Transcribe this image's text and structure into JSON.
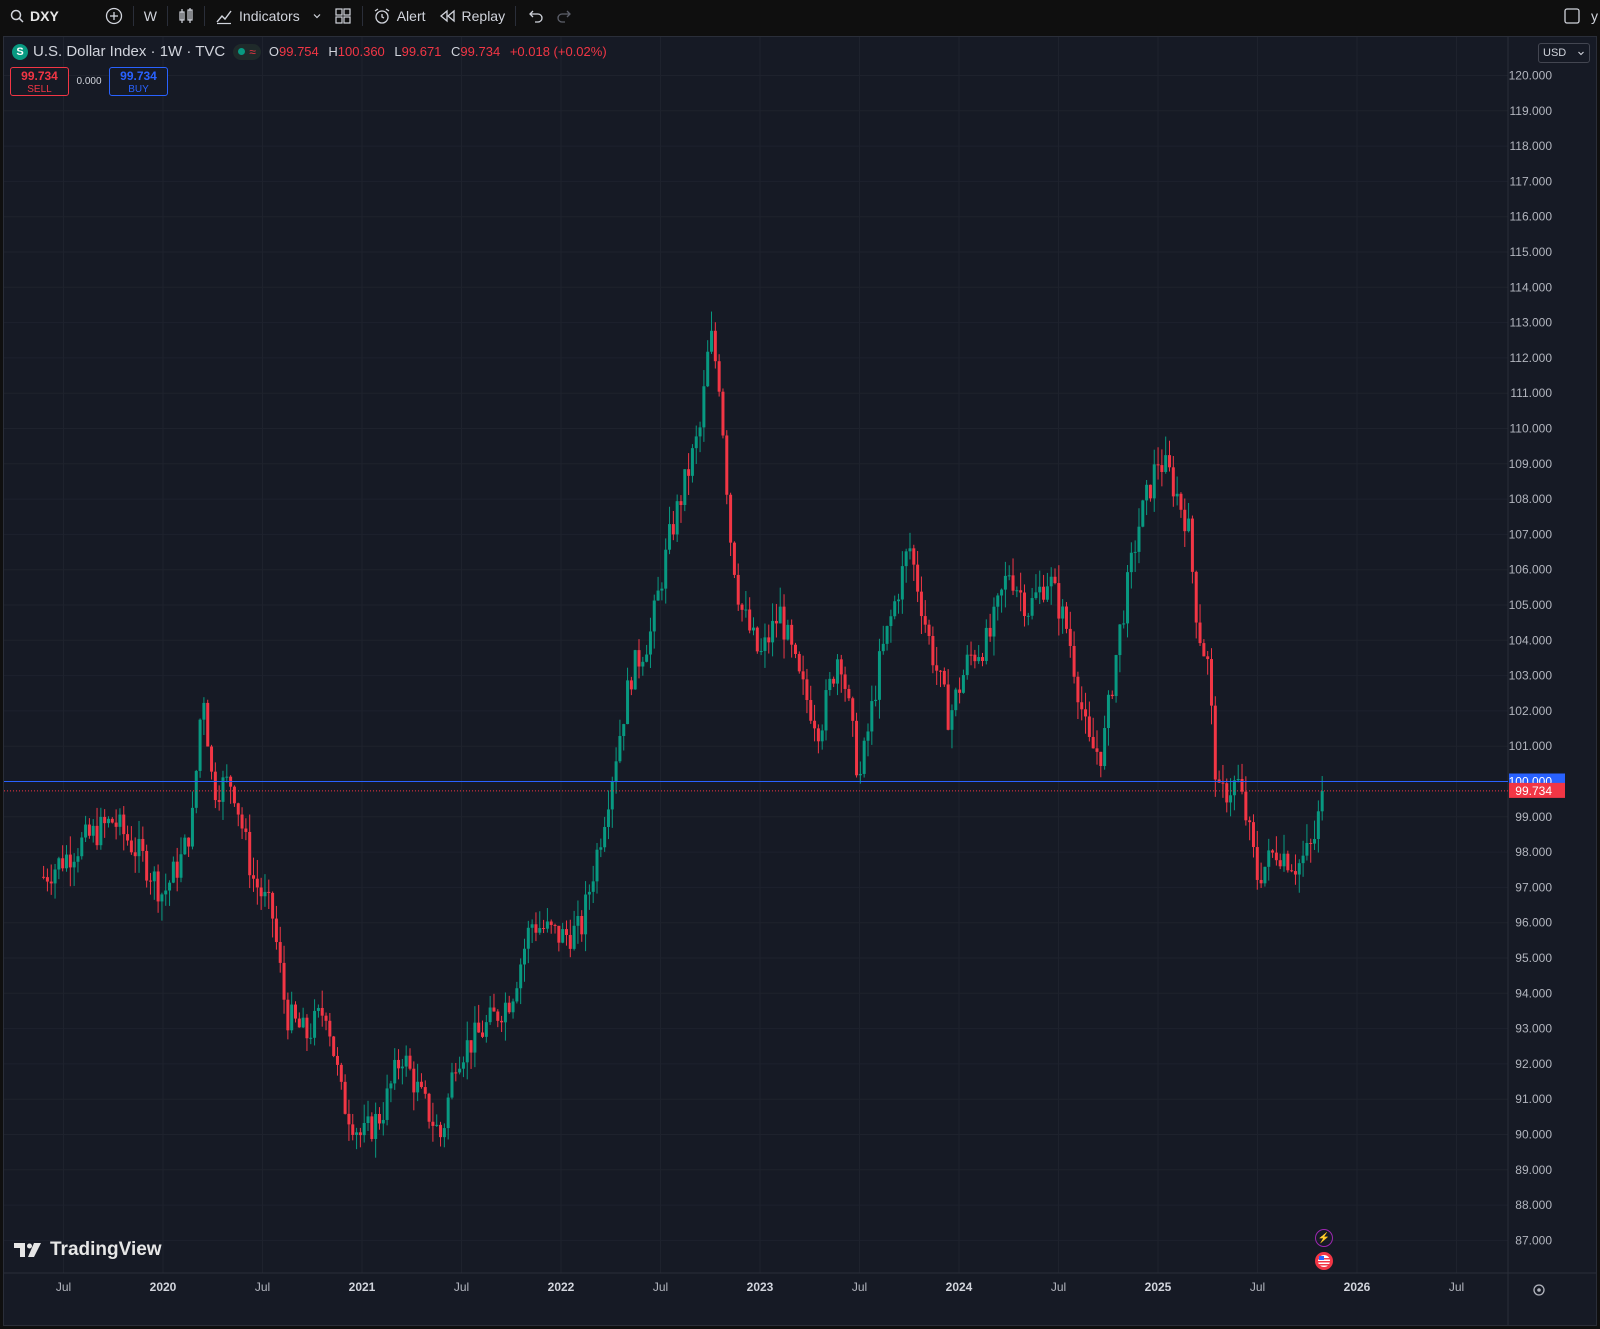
{
  "toolbar": {
    "symbol": "DXY",
    "interval": "W",
    "indicators_label": "Indicators",
    "alert_label": "Alert",
    "replay_label": "Replay",
    "right_text": "y"
  },
  "legend": {
    "title": "U.S. Dollar Index · 1W · TVC",
    "symbol_badge": "S",
    "open_key": "O",
    "open": "99.754",
    "high_key": "H",
    "high": "100.360",
    "low_key": "L",
    "low": "99.671",
    "close_key": "C",
    "close": "99.734",
    "change": "+0.018 (+0.02%)",
    "live_wave": "≈"
  },
  "trade": {
    "sell_price": "99.734",
    "sell_label": "SELL",
    "spread": "0.000",
    "buy_price": "99.734",
    "buy_label": "BUY"
  },
  "currency": {
    "label": "USD"
  },
  "brand": {
    "name": "TradingView"
  },
  "colors": {
    "up": "#089981",
    "down": "#f23645",
    "blue_line": "#2962ff",
    "background": "#161a25",
    "grid": "#1e222d",
    "text": "#d1d4dc"
  },
  "chart_data": {
    "type": "candlestick",
    "title": "U.S. Dollar Index · 1W · TVC",
    "interval": "1W",
    "ylim": [
      86.5,
      121
    ],
    "y_ticks": [
      "120.000",
      "119.000",
      "118.000",
      "117.000",
      "116.000",
      "115.000",
      "114.000",
      "113.000",
      "112.000",
      "111.000",
      "110.000",
      "109.000",
      "108.000",
      "107.000",
      "106.000",
      "105.000",
      "104.000",
      "103.000",
      "102.000",
      "101.000",
      "100.000",
      "99.000",
      "98.000",
      "97.000",
      "96.000",
      "95.000",
      "94.000",
      "93.000",
      "92.000",
      "91.000",
      "90.000",
      "89.000",
      "88.000",
      "87.000"
    ],
    "x_ticks": [
      "Jul",
      "2020",
      "Jul",
      "2021",
      "Jul",
      "2022",
      "Jul",
      "2023",
      "Jul",
      "2024",
      "Jul",
      "2025",
      "Jul",
      "2026",
      "Jul"
    ],
    "bold_x_ticks": [
      "2020",
      "2021",
      "2022",
      "2023",
      "2024",
      "2025",
      "2026"
    ],
    "price_path": [
      [
        2019.4,
        97.3
      ],
      [
        2019.5,
        97.8
      ],
      [
        2019.6,
        98.3
      ],
      [
        2019.75,
        98.9
      ],
      [
        2019.9,
        97.8
      ],
      [
        2020.0,
        96.8
      ],
      [
        2020.1,
        97.9
      ],
      [
        2020.15,
        99.0
      ],
      [
        2020.2,
        102.8
      ],
      [
        2020.25,
        99.8
      ],
      [
        2020.35,
        100.0
      ],
      [
        2020.45,
        97.3
      ],
      [
        2020.55,
        96.2
      ],
      [
        2020.62,
        93.4
      ],
      [
        2020.72,
        92.8
      ],
      [
        2020.82,
        93.6
      ],
      [
        2020.9,
        91.0
      ],
      [
        2021.0,
        89.9
      ],
      [
        2021.1,
        90.6
      ],
      [
        2021.2,
        92.3
      ],
      [
        2021.3,
        91.0
      ],
      [
        2021.4,
        89.9
      ],
      [
        2021.47,
        92.2
      ],
      [
        2021.6,
        92.9
      ],
      [
        2021.75,
        93.9
      ],
      [
        2021.85,
        96.0
      ],
      [
        2022.0,
        95.6
      ],
      [
        2022.1,
        95.8
      ],
      [
        2022.2,
        98.5
      ],
      [
        2022.35,
        103.0
      ],
      [
        2022.45,
        104.2
      ],
      [
        2022.55,
        107.0
      ],
      [
        2022.7,
        110.0
      ],
      [
        2022.75,
        112.7
      ],
      [
        2022.8,
        111.2
      ],
      [
        2022.85,
        107.0
      ],
      [
        2022.9,
        105.0
      ],
      [
        2023.0,
        103.5
      ],
      [
        2023.1,
        104.8
      ],
      [
        2023.2,
        102.8
      ],
      [
        2023.3,
        101.5
      ],
      [
        2023.4,
        103.8
      ],
      [
        2023.5,
        100.0
      ],
      [
        2023.6,
        103.3
      ],
      [
        2023.75,
        106.7
      ],
      [
        2023.85,
        104.0
      ],
      [
        2023.95,
        101.8
      ],
      [
        2024.05,
        103.5
      ],
      [
        2024.15,
        104.0
      ],
      [
        2024.25,
        106.0
      ],
      [
        2024.35,
        104.9
      ],
      [
        2024.45,
        105.8
      ],
      [
        2024.55,
        104.2
      ],
      [
        2024.65,
        101.0
      ],
      [
        2024.72,
        100.8
      ],
      [
        2024.8,
        104.0
      ],
      [
        2024.9,
        107.2
      ],
      [
        2025.0,
        109.1
      ],
      [
        2025.05,
        108.8
      ],
      [
        2025.15,
        107.3
      ],
      [
        2025.2,
        104.4
      ],
      [
        2025.25,
        103.3
      ],
      [
        2025.3,
        99.5
      ],
      [
        2025.4,
        100.0
      ],
      [
        2025.45,
        98.8
      ],
      [
        2025.5,
        97.3
      ],
      [
        2025.6,
        98.1
      ],
      [
        2025.7,
        97.6
      ],
      [
        2025.78,
        98.2
      ],
      [
        2025.83,
        99.7
      ]
    ],
    "horizontal_lines": [
      {
        "price": 100.0,
        "label": "100.000",
        "color": "#2962ff",
        "style": "solid"
      },
      {
        "price": 99.734,
        "label": "99.734",
        "color": "#f23645",
        "style": "dotted"
      }
    ],
    "grid": true
  }
}
